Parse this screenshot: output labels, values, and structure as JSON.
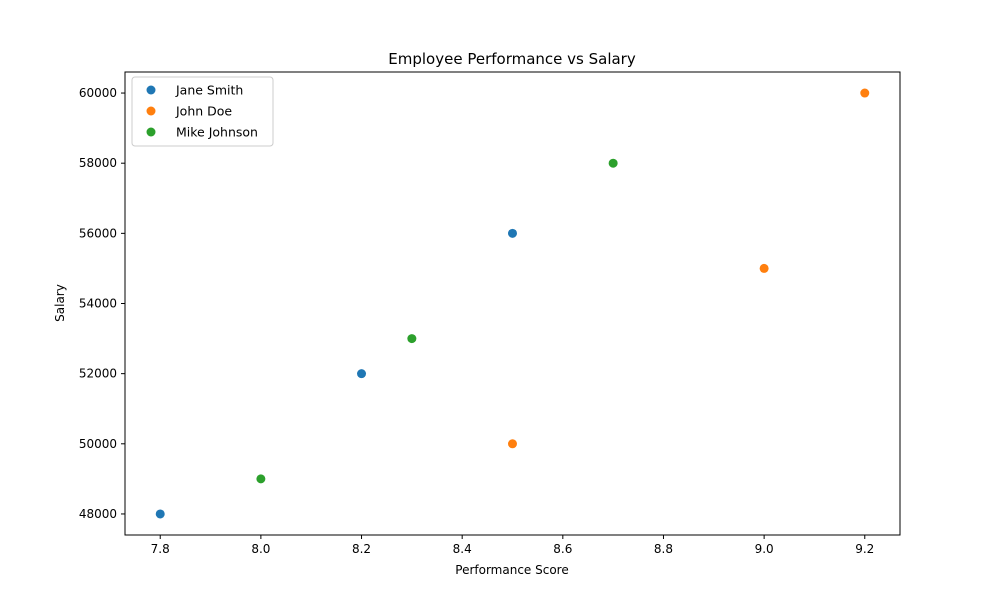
{
  "chart_data": {
    "type": "scatter",
    "title": "Employee Performance vs Salary",
    "xlabel": "Performance Score",
    "ylabel": "Salary",
    "xlim": [
      7.73,
      9.27
    ],
    "ylim": [
      47400,
      60600
    ],
    "xticks": [
      "7.8",
      "8.0",
      "8.2",
      "8.4",
      "8.6",
      "8.8",
      "9.0",
      "9.2"
    ],
    "yticks": [
      "48000",
      "50000",
      "52000",
      "54000",
      "56000",
      "58000",
      "60000"
    ],
    "grid": false,
    "legend": "upper-left",
    "series": [
      {
        "name": "Jane Smith",
        "color": "#1f77b4",
        "points": [
          {
            "x": 7.8,
            "y": 48000
          },
          {
            "x": 8.2,
            "y": 52000
          },
          {
            "x": 8.5,
            "y": 56000
          }
        ]
      },
      {
        "name": "John Doe",
        "color": "#ff7f0e",
        "points": [
          {
            "x": 8.5,
            "y": 50000
          },
          {
            "x": 9.0,
            "y": 55000
          },
          {
            "x": 9.2,
            "y": 60000
          }
        ]
      },
      {
        "name": "Mike Johnson",
        "color": "#2ca02c",
        "points": [
          {
            "x": 8.0,
            "y": 49000
          },
          {
            "x": 8.3,
            "y": 53000
          },
          {
            "x": 8.7,
            "y": 58000
          }
        ]
      }
    ]
  }
}
